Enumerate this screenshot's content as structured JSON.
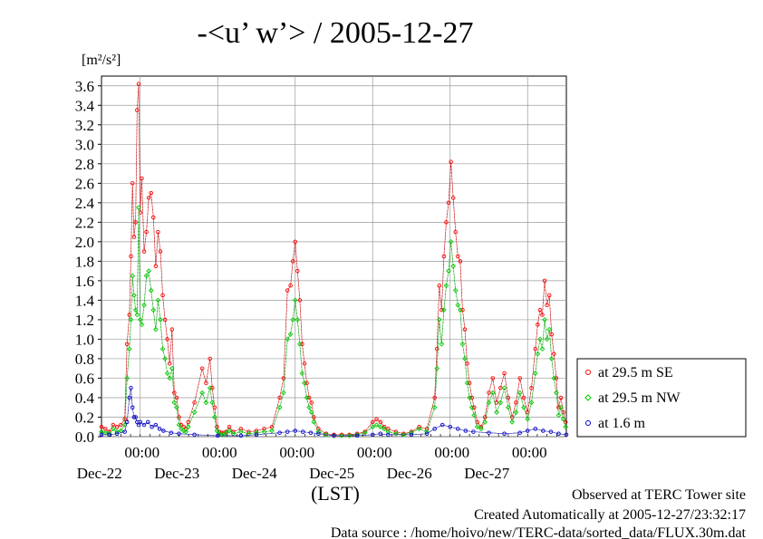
{
  "chart_data": {
    "type": "line",
    "title": "-<u’ w’> / 2005-12-27",
    "ylabel": "[m²/s²]",
    "xlabel": "(LST)",
    "ylim": [
      0,
      3.7
    ],
    "yticks": [
      "0.0",
      "0.2",
      "0.4",
      "0.6",
      "0.8",
      "1.0",
      "1.2",
      "1.4",
      "1.6",
      "1.8",
      "2.0",
      "2.2",
      "2.4",
      "2.6",
      "2.8",
      "3.0",
      "3.2",
      "3.4",
      "3.6"
    ],
    "xlim": [
      0,
      6
    ],
    "x_unit": "days from Dec-21 12:00 LST",
    "xticks": [
      {
        "time": "00:00",
        "date": "Dec-22"
      },
      {
        "time": "00:00",
        "date": "Dec-23"
      },
      {
        "time": "00:00",
        "date": "Dec-24"
      },
      {
        "time": "00:00",
        "date": "Dec-25"
      },
      {
        "time": "00:00",
        "date": "Dec-26"
      },
      {
        "time": "00:00",
        "date": "Dec-27"
      }
    ],
    "grid": true,
    "legend_position": "right",
    "series": [
      {
        "name": "at 29.5 m SE",
        "color": "#ff0000",
        "x": [
          0.0,
          0.05,
          0.1,
          0.15,
          0.2,
          0.25,
          0.3,
          0.33,
          0.36,
          0.38,
          0.4,
          0.42,
          0.44,
          0.46,
          0.48,
          0.5,
          0.52,
          0.55,
          0.58,
          0.61,
          0.64,
          0.67,
          0.7,
          0.73,
          0.76,
          0.79,
          0.82,
          0.85,
          0.88,
          0.91,
          0.94,
          0.97,
          1.0,
          1.03,
          1.06,
          1.09,
          1.12,
          1.2,
          1.3,
          1.35,
          1.4,
          1.43,
          1.46,
          1.49,
          1.52,
          1.55,
          1.58,
          1.61,
          1.65,
          1.7,
          1.8,
          1.9,
          2.0,
          2.1,
          2.2,
          2.3,
          2.35,
          2.4,
          2.44,
          2.47,
          2.5,
          2.53,
          2.56,
          2.59,
          2.62,
          2.65,
          2.68,
          2.71,
          2.74,
          2.8,
          2.9,
          3.0,
          3.1,
          3.2,
          3.3,
          3.4,
          3.5,
          3.55,
          3.6,
          3.65,
          3.7,
          3.8,
          3.9,
          4.0,
          4.1,
          4.2,
          4.3,
          4.33,
          4.36,
          4.39,
          4.42,
          4.45,
          4.48,
          4.51,
          4.54,
          4.57,
          4.6,
          4.63,
          4.66,
          4.69,
          4.72,
          4.75,
          4.78,
          4.81,
          4.85,
          4.9,
          4.95,
          5.0,
          5.05,
          5.1,
          5.15,
          5.2,
          5.25,
          5.3,
          5.35,
          5.4,
          5.45,
          5.5,
          5.55,
          5.6,
          5.63,
          5.66,
          5.69,
          5.72,
          5.75,
          5.78,
          5.81,
          5.84,
          5.87,
          5.9,
          5.93,
          5.96,
          5.99
        ],
        "y": [
          0.1,
          0.08,
          0.05,
          0.12,
          0.1,
          0.12,
          0.18,
          0.95,
          1.25,
          1.85,
          2.6,
          2.05,
          2.2,
          3.35,
          3.62,
          2.3,
          2.65,
          1.9,
          2.1,
          2.45,
          2.5,
          2.25,
          1.75,
          2.1,
          1.9,
          1.45,
          1.2,
          1.0,
          0.75,
          1.1,
          0.45,
          0.4,
          0.2,
          0.12,
          0.1,
          0.08,
          0.15,
          0.35,
          0.7,
          0.55,
          0.8,
          0.5,
          0.3,
          0.1,
          0.05,
          0.04,
          0.04,
          0.05,
          0.1,
          0.05,
          0.08,
          0.05,
          0.06,
          0.08,
          0.1,
          0.4,
          0.6,
          1.5,
          1.55,
          1.8,
          2.0,
          1.7,
          1.4,
          0.95,
          0.75,
          0.55,
          0.4,
          0.35,
          0.2,
          0.08,
          0.03,
          0.02,
          0.02,
          0.02,
          0.03,
          0.05,
          0.15,
          0.18,
          0.15,
          0.1,
          0.08,
          0.05,
          0.03,
          0.05,
          0.1,
          0.08,
          0.4,
          0.9,
          1.55,
          1.3,
          1.85,
          2.2,
          2.4,
          2.82,
          2.45,
          2.1,
          1.85,
          1.8,
          1.3,
          1.1,
          0.75,
          0.55,
          0.4,
          0.3,
          0.15,
          0.1,
          0.2,
          0.45,
          0.6,
          0.35,
          0.5,
          0.65,
          0.4,
          0.2,
          0.35,
          0.6,
          0.4,
          0.25,
          0.5,
          0.9,
          1.15,
          1.3,
          1.25,
          1.6,
          1.35,
          1.45,
          1.05,
          0.85,
          0.6,
          0.3,
          0.4,
          0.25,
          0.15
        ],
        "marker": "circle"
      },
      {
        "name": "at 29.5 m NW",
        "color": "#00cc00",
        "x": [
          0.0,
          0.05,
          0.1,
          0.15,
          0.2,
          0.25,
          0.3,
          0.33,
          0.36,
          0.38,
          0.4,
          0.42,
          0.44,
          0.46,
          0.48,
          0.5,
          0.52,
          0.55,
          0.58,
          0.61,
          0.64,
          0.67,
          0.7,
          0.73,
          0.76,
          0.79,
          0.82,
          0.85,
          0.88,
          0.91,
          0.94,
          0.97,
          1.0,
          1.03,
          1.06,
          1.09,
          1.12,
          1.2,
          1.3,
          1.35,
          1.4,
          1.43,
          1.46,
          1.49,
          1.52,
          1.55,
          1.58,
          1.61,
          1.65,
          1.7,
          1.8,
          1.9,
          2.0,
          2.1,
          2.2,
          2.3,
          2.35,
          2.4,
          2.44,
          2.47,
          2.5,
          2.53,
          2.56,
          2.59,
          2.62,
          2.65,
          2.68,
          2.71,
          2.74,
          2.8,
          2.9,
          3.0,
          3.1,
          3.2,
          3.3,
          3.4,
          3.5,
          3.55,
          3.6,
          3.65,
          3.7,
          3.8,
          3.9,
          4.0,
          4.1,
          4.2,
          4.3,
          4.33,
          4.36,
          4.39,
          4.42,
          4.45,
          4.48,
          4.51,
          4.54,
          4.57,
          4.6,
          4.63,
          4.66,
          4.69,
          4.72,
          4.75,
          4.78,
          4.81,
          4.85,
          4.9,
          4.95,
          5.0,
          5.05,
          5.1,
          5.15,
          5.2,
          5.25,
          5.3,
          5.35,
          5.4,
          5.45,
          5.5,
          5.55,
          5.6,
          5.63,
          5.66,
          5.69,
          5.72,
          5.75,
          5.78,
          5.81,
          5.84,
          5.87,
          5.9,
          5.93,
          5.96,
          5.99
        ],
        "y": [
          0.05,
          0.04,
          0.03,
          0.08,
          0.05,
          0.06,
          0.12,
          0.6,
          0.9,
          1.2,
          1.65,
          1.45,
          1.3,
          1.25,
          2.35,
          1.2,
          1.15,
          1.35,
          1.65,
          1.7,
          1.5,
          1.3,
          1.1,
          1.4,
          1.2,
          0.9,
          0.8,
          0.65,
          0.6,
          0.7,
          0.35,
          0.3,
          0.12,
          0.08,
          0.06,
          0.05,
          0.1,
          0.25,
          0.45,
          0.35,
          0.5,
          0.35,
          0.2,
          0.06,
          0.03,
          0.02,
          0.02,
          0.04,
          0.06,
          0.03,
          0.05,
          0.03,
          0.04,
          0.05,
          0.06,
          0.3,
          0.45,
          1.0,
          1.05,
          1.2,
          1.4,
          1.2,
          0.95,
          0.65,
          0.55,
          0.4,
          0.3,
          0.25,
          0.15,
          0.05,
          0.02,
          0.01,
          0.01,
          0.01,
          0.02,
          0.04,
          0.1,
          0.12,
          0.1,
          0.08,
          0.05,
          0.03,
          0.02,
          0.04,
          0.08,
          0.05,
          0.3,
          0.7,
          1.2,
          0.95,
          1.3,
          1.55,
          1.7,
          2.0,
          1.75,
          1.5,
          1.35,
          1.3,
          0.95,
          0.8,
          0.55,
          0.4,
          0.3,
          0.22,
          0.1,
          0.08,
          0.15,
          0.35,
          0.45,
          0.25,
          0.35,
          0.5,
          0.3,
          0.15,
          0.25,
          0.45,
          0.3,
          0.18,
          0.35,
          0.65,
          0.85,
          1.0,
          0.9,
          1.2,
          1.0,
          1.1,
          0.8,
          0.6,
          0.45,
          0.22,
          0.3,
          0.18,
          0.1
        ],
        "marker": "diamond"
      },
      {
        "name": "at 1.6 m",
        "color": "#0000cc",
        "x": [
          0.0,
          0.1,
          0.2,
          0.3,
          0.33,
          0.36,
          0.38,
          0.4,
          0.42,
          0.44,
          0.46,
          0.48,
          0.5,
          0.55,
          0.6,
          0.65,
          0.7,
          0.75,
          0.8,
          0.9,
          1.0,
          1.2,
          1.5,
          1.8,
          2.0,
          2.3,
          2.4,
          2.5,
          2.6,
          2.7,
          2.8,
          3.0,
          3.3,
          3.5,
          3.6,
          3.7,
          4.0,
          4.2,
          4.3,
          4.4,
          4.5,
          4.6,
          4.7,
          4.8,
          5.0,
          5.2,
          5.4,
          5.5,
          5.6,
          5.7,
          5.8,
          5.9,
          6.0
        ],
        "y": [
          0.02,
          0.02,
          0.03,
          0.05,
          0.15,
          0.4,
          0.5,
          0.3,
          0.2,
          0.2,
          0.15,
          0.12,
          0.15,
          0.12,
          0.15,
          0.1,
          0.12,
          0.08,
          0.06,
          0.04,
          0.03,
          0.02,
          0.01,
          0.01,
          0.02,
          0.04,
          0.05,
          0.06,
          0.05,
          0.04,
          0.03,
          0.01,
          0.01,
          0.02,
          0.03,
          0.02,
          0.02,
          0.03,
          0.08,
          0.12,
          0.1,
          0.08,
          0.06,
          0.05,
          0.04,
          0.03,
          0.04,
          0.06,
          0.08,
          0.06,
          0.05,
          0.03,
          0.02
        ],
        "marker": "circle"
      }
    ]
  },
  "footer": {
    "line1": "Observed at TERC Tower site",
    "line2": "Created Automatically at 2005-12-27/23:32:17",
    "line3": "Data source : /home/hoivo/new/TERC-data/sorted_data/FLUX.30m.dat"
  }
}
